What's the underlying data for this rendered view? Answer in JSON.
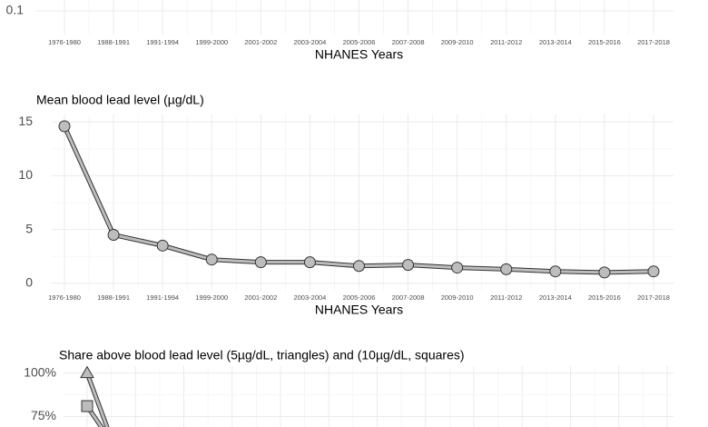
{
  "chart_data": [
    {
      "type": "line",
      "categories": [
        "1976-1980",
        "1988-1991",
        "1991-1994",
        "1999-2000",
        "2001-2002",
        "2003-2004",
        "2005-2006",
        "2007-2008",
        "2009-2010",
        "2011-2012",
        "2013-2014",
        "2015-2016",
        "2017-2018"
      ],
      "xlabel": "NHANES Years",
      "yticks": [
        0.1
      ],
      "grid": true
    },
    {
      "type": "line",
      "title": "Mean blood lead level (µg/dL)",
      "categories": [
        "1976-1980",
        "1988-1991",
        "1991-1994",
        "1999-2000",
        "2001-2002",
        "2003-2004",
        "2005-2006",
        "2007-2008",
        "2009-2010",
        "2011-2012",
        "2013-2014",
        "2015-2016",
        "2017-2018"
      ],
      "xlabel": "NHANES Years",
      "series": [
        {
          "color": "#bdbdbd",
          "marker": "circle",
          "values": [
            14.6,
            4.5,
            3.5,
            2.2,
            1.95,
            1.95,
            1.6,
            1.7,
            1.45,
            1.3,
            1.1,
            1.0,
            1.1
          ]
        }
      ],
      "ylim": [
        -0.7,
        15.7
      ],
      "yticks": [
        0,
        5,
        10,
        15
      ],
      "grid": true
    },
    {
      "type": "line",
      "title": "Share above blood lead level (5µg/dL, triangles) and (10µg/dL, squares)",
      "series": [
        {
          "color": "#bdbdbd",
          "marker": "triangle",
          "values": [
            100
          ]
        },
        {
          "color": "#bdbdbd",
          "marker": "square",
          "values": [
            81
          ]
        }
      ],
      "ylim": [
        69,
        104
      ],
      "yticks": [
        {
          "value": 100,
          "label": "100%"
        },
        {
          "value": 75,
          "label": "75%"
        }
      ],
      "grid": true
    }
  ]
}
